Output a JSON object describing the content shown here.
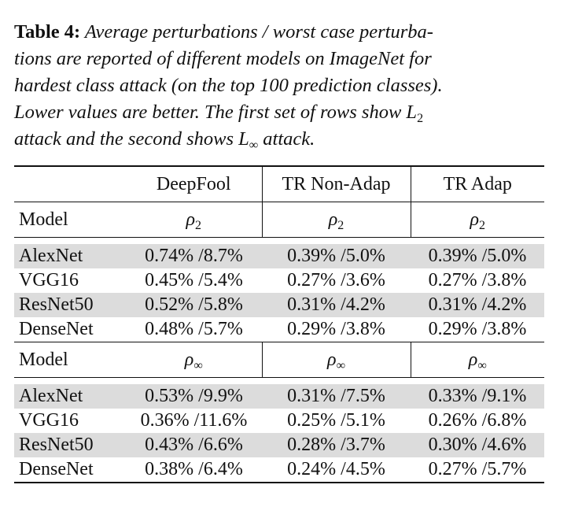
{
  "caption": {
    "label": "Table 4:",
    "lines": [
      "Average perturbations / worst case perturba-",
      "tions are reported of different models on ImageNet for",
      "hardest class attack (on the top 100 prediction classes).",
      "Lower values are better. The first set of rows show"
    ],
    "math1": {
      "base": "L",
      "sub": "2"
    },
    "line5_pre": "attack and the second shows",
    "math2": {
      "base": "L",
      "sub": "∞"
    },
    "line5_post": "attack."
  },
  "table": {
    "columns": [
      "DeepFool",
      "TR Non-Adap",
      "TR Adap"
    ],
    "sections": [
      {
        "label": "Model",
        "metric": {
          "base": "ρ",
          "sub": "2"
        },
        "rows": [
          {
            "model": "AlexNet",
            "cells": [
              "0.74% /8.7%",
              "0.39% /5.0%",
              "0.39% /5.0%"
            ]
          },
          {
            "model": "VGG16",
            "cells": [
              "0.45% /5.4%",
              "0.27% /3.6%",
              "0.27% /3.8%"
            ]
          },
          {
            "model": "ResNet50",
            "cells": [
              "0.52% /5.8%",
              "0.31% /4.2%",
              "0.31% /4.2%"
            ]
          },
          {
            "model": "DenseNet",
            "cells": [
              "0.48% /5.7%",
              "0.29% /3.8%",
              "0.29% /3.8%"
            ]
          }
        ]
      },
      {
        "label": "Model",
        "metric": {
          "base": "ρ",
          "sub": "∞"
        },
        "rows": [
          {
            "model": "AlexNet",
            "cells": [
              "0.53% /9.9%",
              "0.31% /7.5%",
              "0.33% /9.1%"
            ]
          },
          {
            "model": "VGG16",
            "cells": [
              "0.36% /11.6%",
              "0.25% /5.1%",
              "0.26% /6.8%"
            ]
          },
          {
            "model": "ResNet50",
            "cells": [
              "0.43% /6.6%",
              "0.28% /3.7%",
              "0.30% /4.6%"
            ]
          },
          {
            "model": "DenseNet",
            "cells": [
              "0.38% /6.4%",
              "0.24% /4.5%",
              "0.27% /5.7%"
            ]
          }
        ]
      }
    ]
  }
}
